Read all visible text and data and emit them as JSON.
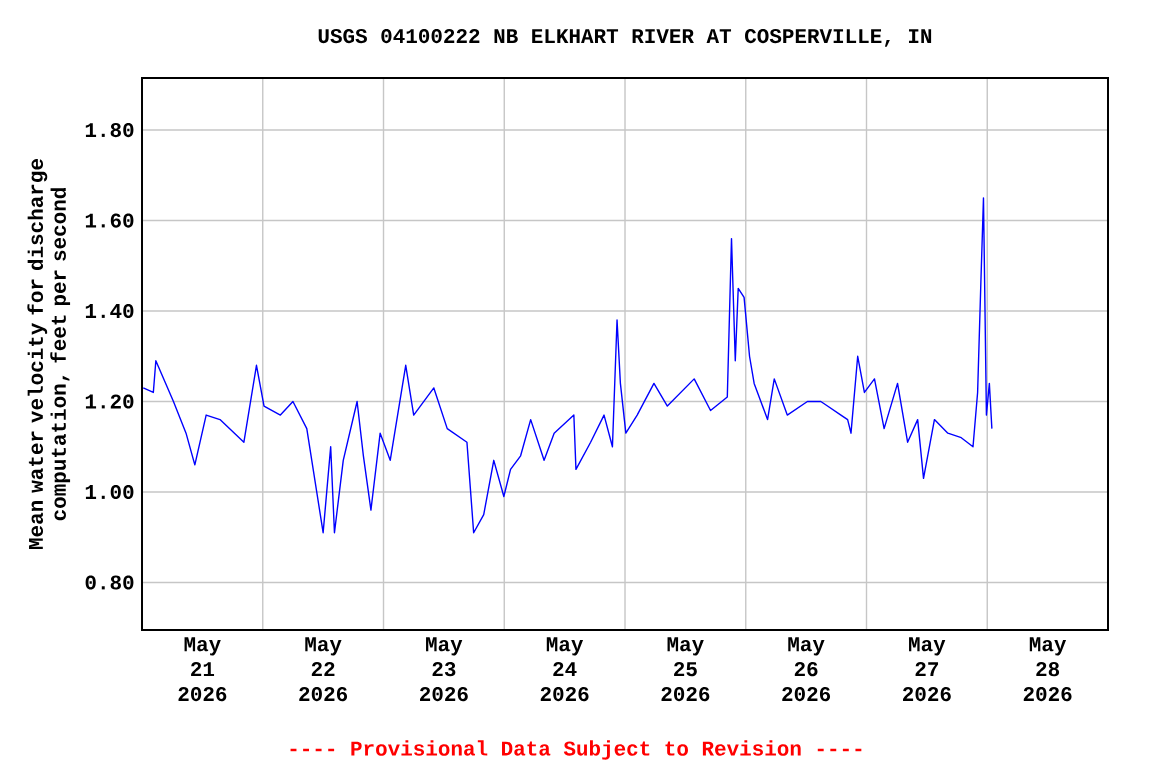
{
  "chart_data": {
    "type": "line",
    "title": "USGS 04100222 NB ELKHART RIVER AT COSPERVILLE, IN",
    "ylabel": "Mean water velocity for discharge computation, feet per second",
    "annotations": [
      "---- Provisional Data Subject to Revision ----"
    ],
    "xlim": [
      "2026-05-21T00:00",
      "2026-05-29T00:00"
    ],
    "xticks": [
      {
        "value": "2026-05-21T12:00",
        "label": "May 21 2026"
      },
      {
        "value": "2026-05-22T12:00",
        "label": "May 22 2026"
      },
      {
        "value": "2026-05-23T12:00",
        "label": "May 23 2026"
      },
      {
        "value": "2026-05-24T12:00",
        "label": "May 24 2026"
      },
      {
        "value": "2026-05-25T12:00",
        "label": "May 25 2026"
      },
      {
        "value": "2026-05-26T12:00",
        "label": "May 26 2026"
      },
      {
        "value": "2026-05-27T12:00",
        "label": "May 27 2026"
      },
      {
        "value": "2026-05-28T12:00",
        "label": "May 28 2026"
      },
      {
        "value": "2026-05-22T00:00",
        "label": null
      },
      {
        "value": "2026-05-23T00:00",
        "label": null
      },
      {
        "value": "2026-05-24T00:00",
        "label": null
      },
      {
        "value": "2026-05-25T00:00",
        "label": null
      },
      {
        "value": "2026-05-26T00:00",
        "label": null
      },
      {
        "value": "2026-05-27T00:00",
        "label": null
      },
      {
        "value": "2026-05-28T00:00",
        "label": null
      }
    ],
    "ylim": [
      0.695,
      1.915
    ],
    "yticks": [
      {
        "value": 0.8,
        "label": "0.80"
      },
      {
        "value": 1.0,
        "label": "1.00"
      },
      {
        "value": 1.2,
        "label": "1.20"
      },
      {
        "value": 1.4,
        "label": "1.40"
      },
      {
        "value": 1.6,
        "label": "1.60"
      },
      {
        "value": 1.8,
        "label": "1.80"
      }
    ],
    "grid": true,
    "marker": "none",
    "line_style": "solid",
    "series": [
      {
        "color": "#0000ff",
        "x": [
          "2026-05-21T00:15",
          "2026-05-21T02:15",
          "2026-05-21T02:45",
          "2026-05-21T06:15",
          "2026-05-21T08:45",
          "2026-05-21T10:30",
          "2026-05-21T12:45",
          "2026-05-21T15:30",
          "2026-05-21T20:15",
          "2026-05-21T22:45",
          "2026-05-22T00:15",
          "2026-05-22T03:30",
          "2026-05-22T06:00",
          "2026-05-22T08:45",
          "2026-05-22T12:00",
          "2026-05-22T13:30",
          "2026-05-22T14:15",
          "2026-05-22T16:00",
          "2026-05-22T18:45",
          "2026-05-22T20:00",
          "2026-05-22T21:30",
          "2026-05-22T23:20",
          "2026-05-23T01:20",
          "2026-05-23T04:25",
          "2026-05-23T06:00",
          "2026-05-23T10:00",
          "2026-05-23T12:40",
          "2026-05-23T16:35",
          "2026-05-23T17:55",
          "2026-05-23T19:55",
          "2026-05-23T21:55",
          "2026-05-23T23:55",
          "2026-05-24T01:15",
          "2026-05-24T03:15",
          "2026-05-24T05:15",
          "2026-05-24T07:55",
          "2026-05-24T09:55",
          "2026-05-24T13:50",
          "2026-05-24T14:15",
          "2026-05-24T17:10",
          "2026-05-24T19:50",
          "2026-05-24T21:30",
          "2026-05-24T22:25",
          "2026-05-24T23:05",
          "2026-05-25T00:10",
          "2026-05-25T02:25",
          "2026-05-25T05:45",
          "2026-05-25T08:25",
          "2026-05-25T13:45",
          "2026-05-25T17:00",
          "2026-05-25T20:20",
          "2026-05-25T21:10",
          "2026-05-25T21:55",
          "2026-05-25T22:30",
          "2026-05-25T23:40",
          "2026-05-26T00:45",
          "2026-05-26T01:40",
          "2026-05-26T04:20",
          "2026-05-26T05:40",
          "2026-05-26T08:15",
          "2026-05-26T12:15",
          "2026-05-26T14:55",
          "2026-05-26T16:15",
          "2026-05-26T18:55",
          "2026-05-26T20:15",
          "2026-05-26T20:55",
          "2026-05-26T22:15",
          "2026-05-26T23:35",
          "2026-05-27T01:35",
          "2026-05-27T03:30",
          "2026-05-27T06:10",
          "2026-05-27T08:10",
          "2026-05-27T10:10",
          "2026-05-27T11:20",
          "2026-05-27T13:30",
          "2026-05-27T16:10",
          "2026-05-27T18:50",
          "2026-05-27T21:10",
          "2026-05-27T22:05",
          "2026-05-27T22:45",
          "2026-05-27T23:15",
          "2026-05-27T23:50",
          "2026-05-28T00:25",
          "2026-05-28T00:55"
        ],
        "values": [
          1.23,
          1.22,
          1.29,
          1.2,
          1.13,
          1.06,
          1.17,
          1.16,
          1.11,
          1.28,
          1.19,
          1.17,
          1.2,
          1.14,
          0.91,
          1.1,
          0.91,
          1.07,
          1.2,
          1.08,
          0.96,
          1.13,
          1.07,
          1.28,
          1.17,
          1.23,
          1.14,
          1.11,
          0.91,
          0.95,
          1.07,
          0.99,
          1.05,
          1.08,
          1.16,
          1.07,
          1.13,
          1.17,
          1.05,
          1.11,
          1.17,
          1.1,
          1.38,
          1.24,
          1.13,
          1.17,
          1.24,
          1.19,
          1.25,
          1.18,
          1.21,
          1.56,
          1.29,
          1.45,
          1.43,
          1.3,
          1.24,
          1.16,
          1.25,
          1.17,
          1.2,
          1.2,
          1.19,
          1.17,
          1.16,
          1.13,
          1.3,
          1.22,
          1.25,
          1.14,
          1.24,
          1.11,
          1.16,
          1.03,
          1.16,
          1.13,
          1.12,
          1.1,
          1.22,
          1.47,
          1.65,
          1.17,
          1.24,
          1.14
        ]
      }
    ]
  }
}
